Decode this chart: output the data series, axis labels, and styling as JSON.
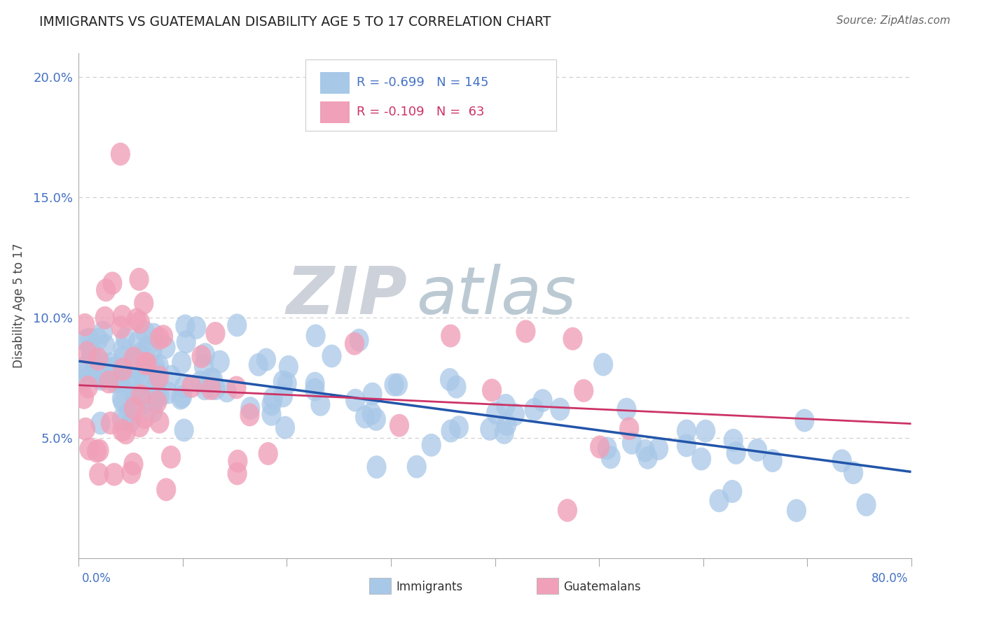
{
  "title": "IMMIGRANTS VS GUATEMALAN DISABILITY AGE 5 TO 17 CORRELATION CHART",
  "source": "Source: ZipAtlas.com",
  "ylabel": "Disability Age 5 to 17",
  "xlim": [
    0.0,
    0.8
  ],
  "ylim": [
    0.0,
    0.21
  ],
  "immigrants_color": "#a8c8e8",
  "guatemalans_color": "#f0a0b8",
  "trend_immigrants_color": "#2255aa",
  "trend_guatemalans_color": "#cc3366",
  "watermark_zip_color": "#c8d0dc",
  "watermark_atlas_color": "#b8ccd8",
  "background_color": "#ffffff",
  "grid_color": "#cccccc",
  "ytick_color": "#4472c4",
  "xlabel_color": "#4472c4",
  "title_color": "#222222",
  "source_color": "#666666",
  "legend_r1_color": "#4472c4",
  "legend_r2_color": "#cc3366",
  "blue_trend_start_y": 0.082,
  "blue_trend_end_y": 0.036,
  "pink_trend_start_y": 0.072,
  "pink_trend_end_y": 0.056,
  "seed_blue": 42,
  "seed_pink": 17,
  "n_blue": 145,
  "n_pink": 63
}
